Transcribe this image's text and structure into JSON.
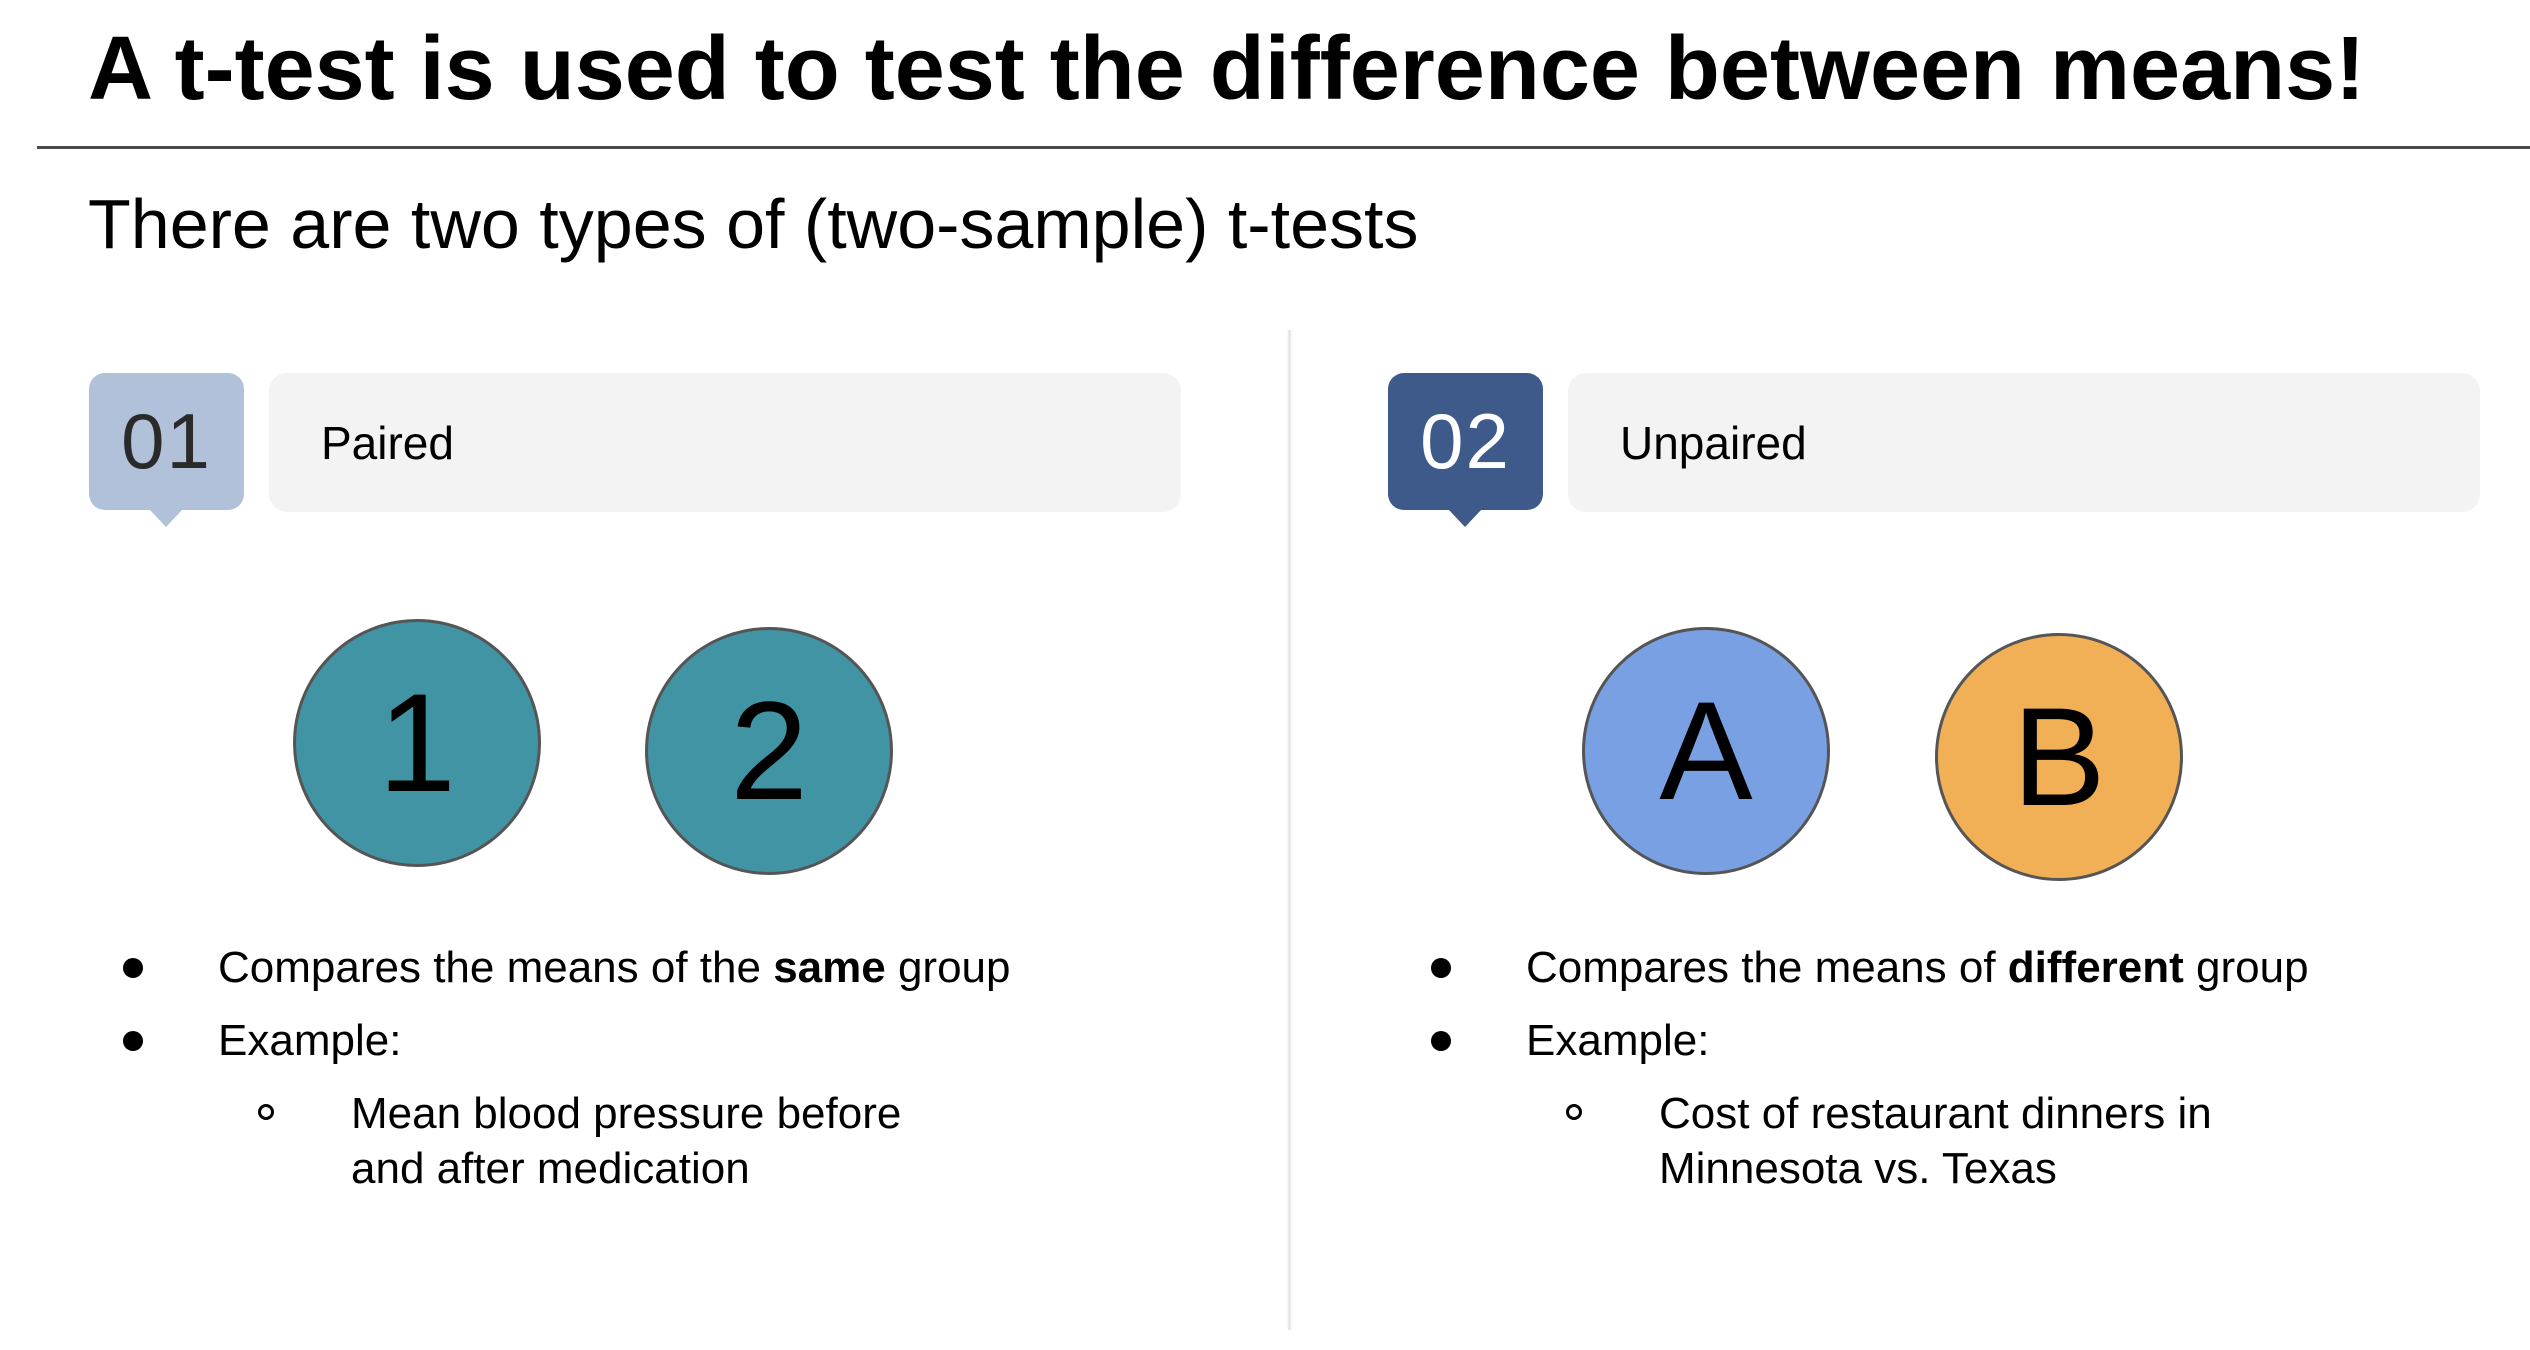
{
  "slide": {
    "title": "A t-test is used to test the difference between means!",
    "subtitle": "There are two types of (two-sample) t-tests"
  },
  "left": {
    "number": "01",
    "label": "Paired",
    "circles": [
      "1",
      "2"
    ],
    "bullet1_pre": "Compares the means of the ",
    "bullet1_bold": "same",
    "bullet1_post": " group",
    "bullet2": "Example:",
    "sub_bullet": "Mean blood pressure before and after medication"
  },
  "right": {
    "number": "02",
    "label": "Unpaired",
    "circles": [
      "A",
      "B"
    ],
    "bullet1_pre": "Compares the means of ",
    "bullet1_bold": "different",
    "bullet1_post": " group",
    "bullet2": "Example:",
    "sub_bullet": "Cost of restaurant dinners in Minnesota vs. Texas"
  },
  "colors": {
    "badge_01": "#b1c1d9",
    "badge_02": "#3e5a8a",
    "circle_paired": "#4194a4",
    "circle_a": "#7aa0e4",
    "circle_b": "#f2b056",
    "label_bar": "#f3f3f3"
  }
}
